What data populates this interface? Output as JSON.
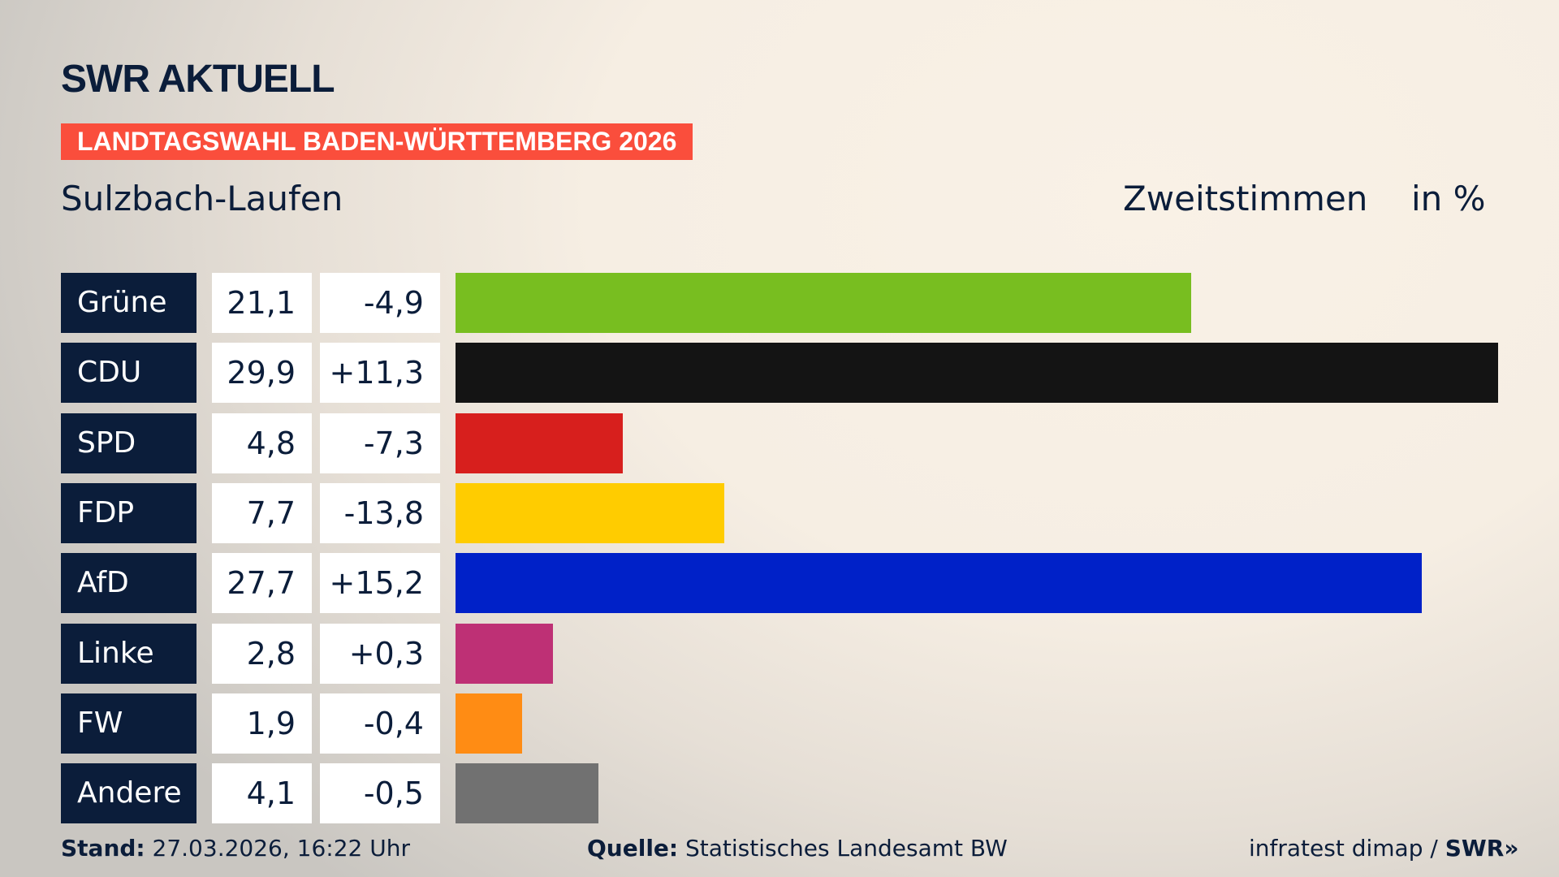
{
  "header": {
    "logo_text": "SWR AKTUELL",
    "banner": "LANDTAGSWAHL BADEN-WÜRTTEMBERG 2026",
    "region": "Sulzbach-Laufen",
    "measure": "Zweitstimmen",
    "unit": "in %"
  },
  "chart_data": {
    "type": "bar",
    "orientation": "horizontal",
    "title": "Sulzbach-Laufen",
    "categories": [
      "Grüne",
      "CDU",
      "SPD",
      "FDP",
      "AfD",
      "Linke",
      "FW",
      "Andere"
    ],
    "values": [
      21.1,
      29.9,
      4.8,
      7.7,
      27.7,
      2.8,
      1.9,
      4.1
    ],
    "value_labels": [
      "21,1",
      "29,9",
      "4,8",
      "7,7",
      "27,7",
      "2,8",
      "1,9",
      "4,1"
    ],
    "changes": [
      -4.9,
      11.3,
      -7.3,
      -13.8,
      15.2,
      0.3,
      -0.4,
      -0.5
    ],
    "change_labels": [
      "-4,9",
      "+11,3",
      "-7,3",
      "-13,8",
      "+15,2",
      "+0,3",
      "-0,4",
      "-0,5"
    ],
    "colors": [
      "#78be20",
      "#141414",
      "#d71f1d",
      "#ffcc00",
      "#0021c8",
      "#be3075",
      "#ff8c14",
      "#717171"
    ],
    "xlim": [
      0,
      29.9
    ],
    "grid": false
  },
  "footer": {
    "stand_label": "Stand:",
    "stand_value": "27.03.2026, 16:22 Uhr",
    "source_label": "Quelle:",
    "source_value": "Statistisches Landesamt BW",
    "credit": "infratest dimap / ",
    "credit_logo": "SWR"
  }
}
